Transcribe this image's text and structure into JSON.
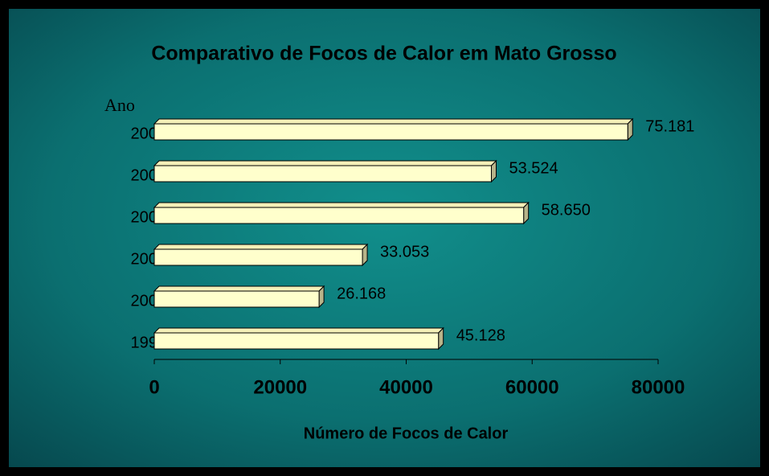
{
  "chart_data": {
    "type": "bar",
    "orientation": "horizontal",
    "title": "Comparativo de Focos de Calor em Mato Grosso",
    "y_label": "Ano",
    "x_label": "Número de Focos de Calor",
    "categories": [
      "2004",
      "2003",
      "2002",
      "2001",
      "2000",
      "1999"
    ],
    "values": [
      75181,
      53524,
      58650,
      33053,
      26168,
      45128
    ],
    "value_labels": [
      "75.181",
      "53.524",
      "58.650",
      "33.053",
      "26.168",
      "45.128"
    ],
    "color": "#ffffcc",
    "xlim": [
      0,
      80000
    ],
    "xticks": [
      0,
      20000,
      40000,
      60000,
      80000
    ]
  }
}
